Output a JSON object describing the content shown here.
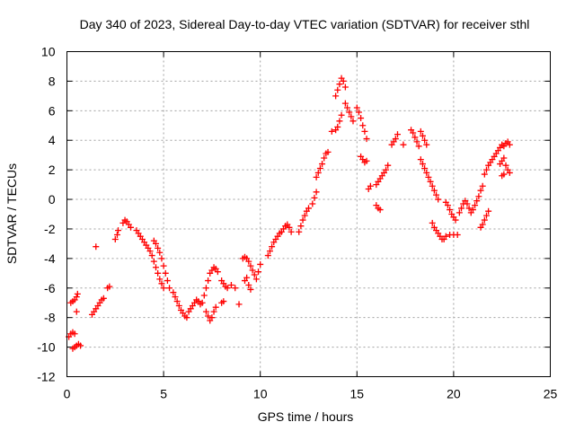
{
  "colors": {
    "series": "#ff0000",
    "grid": "#a0a0a0",
    "axis": "#000000"
  },
  "chart_data": {
    "type": "scatter",
    "title": "Day 340 of 2023, Sidereal Day-to-day VTEC variation (SDTVAR) for receiver sthl",
    "xlabel": "GPS time / hours",
    "ylabel": "SDTVAR / TECUs",
    "xlim": [
      0,
      25
    ],
    "ylim": [
      -12,
      10
    ],
    "xticks": [
      0,
      5,
      10,
      15,
      20,
      25
    ],
    "yticks": [
      -12,
      -10,
      -8,
      -6,
      -4,
      -2,
      0,
      2,
      4,
      6,
      8,
      10
    ],
    "grid": true,
    "marker": "+",
    "series": [
      {
        "name": "SDTVAR",
        "points": [
          [
            0.1,
            -9.3
          ],
          [
            0.2,
            -9.1
          ],
          [
            0.3,
            -9.0
          ],
          [
            0.4,
            -9.1
          ],
          [
            0.2,
            -7.0
          ],
          [
            0.3,
            -6.9
          ],
          [
            0.4,
            -6.8
          ],
          [
            0.5,
            -6.6
          ],
          [
            0.55,
            -6.4
          ],
          [
            0.5,
            -7.6
          ],
          [
            0.3,
            -10.1
          ],
          [
            0.4,
            -10.0
          ],
          [
            0.5,
            -9.9
          ],
          [
            0.6,
            -9.8
          ],
          [
            0.7,
            -9.9
          ],
          [
            1.3,
            -7.8
          ],
          [
            1.4,
            -7.6
          ],
          [
            1.5,
            -7.4
          ],
          [
            1.6,
            -7.2
          ],
          [
            1.7,
            -7.0
          ],
          [
            1.8,
            -6.8
          ],
          [
            1.9,
            -6.7
          ],
          [
            1.5,
            -3.2
          ],
          [
            2.1,
            -6.0
          ],
          [
            2.2,
            -5.9
          ],
          [
            2.5,
            -2.7
          ],
          [
            2.6,
            -2.4
          ],
          [
            2.65,
            -2.1
          ],
          [
            2.9,
            -1.6
          ],
          [
            3.0,
            -1.4
          ],
          [
            3.1,
            -1.5
          ],
          [
            3.2,
            -1.7
          ],
          [
            3.3,
            -1.9
          ],
          [
            3.6,
            -2.1
          ],
          [
            3.7,
            -2.3
          ],
          [
            3.8,
            -2.5
          ],
          [
            3.9,
            -2.7
          ],
          [
            4.0,
            -2.9
          ],
          [
            4.1,
            -3.1
          ],
          [
            4.2,
            -3.3
          ],
          [
            4.3,
            -3.5
          ],
          [
            4.4,
            -3.8
          ],
          [
            4.5,
            -4.2
          ],
          [
            4.6,
            -4.6
          ],
          [
            4.7,
            -5.0
          ],
          [
            4.8,
            -5.4
          ],
          [
            4.9,
            -5.7
          ],
          [
            5.0,
            -6.0
          ],
          [
            4.5,
            -2.8
          ],
          [
            4.6,
            -3.0
          ],
          [
            4.7,
            -3.3
          ],
          [
            4.8,
            -3.6
          ],
          [
            4.9,
            -4.0
          ],
          [
            5.0,
            -4.5
          ],
          [
            5.1,
            -5.0
          ],
          [
            5.2,
            -5.5
          ],
          [
            5.3,
            -6.0
          ],
          [
            5.5,
            -6.3
          ],
          [
            5.6,
            -6.6
          ],
          [
            5.7,
            -6.9
          ],
          [
            5.8,
            -7.2
          ],
          [
            5.9,
            -7.5
          ],
          [
            6.0,
            -7.7
          ],
          [
            6.1,
            -7.9
          ],
          [
            6.2,
            -8.0
          ],
          [
            6.3,
            -7.6
          ],
          [
            6.4,
            -7.4
          ],
          [
            6.5,
            -7.2
          ],
          [
            6.6,
            -7.0
          ],
          [
            6.7,
            -6.8
          ],
          [
            6.8,
            -6.9
          ],
          [
            6.9,
            -7.1
          ],
          [
            7.0,
            -7.0
          ],
          [
            7.1,
            -6.5
          ],
          [
            7.2,
            -6.0
          ],
          [
            7.3,
            -5.5
          ],
          [
            7.4,
            -5.0
          ],
          [
            7.5,
            -4.8
          ],
          [
            7.6,
            -4.6
          ],
          [
            7.7,
            -4.7
          ],
          [
            7.8,
            -4.9
          ],
          [
            7.2,
            -7.6
          ],
          [
            7.3,
            -7.9
          ],
          [
            7.4,
            -8.2
          ],
          [
            7.5,
            -8.0
          ],
          [
            7.6,
            -7.6
          ],
          [
            7.7,
            -7.3
          ],
          [
            8.0,
            -5.5
          ],
          [
            8.1,
            -5.7
          ],
          [
            8.2,
            -5.9
          ],
          [
            8.3,
            -6.0
          ],
          [
            8.0,
            -7.0
          ],
          [
            8.1,
            -6.9
          ],
          [
            8.5,
            -5.8
          ],
          [
            8.7,
            -6.0
          ],
          [
            8.9,
            -7.1
          ],
          [
            9.1,
            -4.0
          ],
          [
            9.2,
            -3.9
          ],
          [
            9.3,
            -4.0
          ],
          [
            9.4,
            -4.2
          ],
          [
            9.5,
            -4.5
          ],
          [
            9.6,
            -4.8
          ],
          [
            9.7,
            -5.1
          ],
          [
            9.8,
            -5.4
          ],
          [
            9.9,
            -4.9
          ],
          [
            10.0,
            -4.4
          ],
          [
            9.2,
            -5.5
          ],
          [
            9.3,
            -5.3
          ],
          [
            9.4,
            -5.8
          ],
          [
            9.5,
            -6.1
          ],
          [
            10.4,
            -3.8
          ],
          [
            10.5,
            -3.5
          ],
          [
            10.6,
            -3.2
          ],
          [
            10.7,
            -2.9
          ],
          [
            10.8,
            -2.7
          ],
          [
            10.9,
            -2.5
          ],
          [
            11.0,
            -2.3
          ],
          [
            11.1,
            -2.2
          ],
          [
            11.2,
            -2.0
          ],
          [
            11.3,
            -1.8
          ],
          [
            11.4,
            -1.7
          ],
          [
            11.5,
            -1.9
          ],
          [
            11.6,
            -2.2
          ],
          [
            12.0,
            -2.2
          ],
          [
            12.1,
            -1.8
          ],
          [
            12.2,
            -1.4
          ],
          [
            12.3,
            -1.1
          ],
          [
            12.4,
            -0.8
          ],
          [
            12.5,
            -0.6
          ],
          [
            12.7,
            -0.3
          ],
          [
            12.8,
            0.1
          ],
          [
            12.9,
            0.5
          ],
          [
            12.9,
            1.5
          ],
          [
            13.0,
            1.8
          ],
          [
            13.1,
            2.1
          ],
          [
            13.2,
            2.4
          ],
          [
            13.3,
            2.8
          ],
          [
            13.4,
            3.1
          ],
          [
            13.5,
            3.2
          ],
          [
            13.7,
            4.6
          ],
          [
            13.9,
            4.7
          ],
          [
            14.0,
            4.9
          ],
          [
            14.1,
            5.3
          ],
          [
            14.2,
            5.7
          ],
          [
            13.9,
            7.0
          ],
          [
            14.0,
            7.4
          ],
          [
            14.1,
            7.8
          ],
          [
            14.2,
            8.2
          ],
          [
            14.3,
            8.0
          ],
          [
            14.4,
            7.6
          ],
          [
            14.4,
            6.5
          ],
          [
            14.5,
            6.2
          ],
          [
            14.6,
            5.9
          ],
          [
            14.7,
            5.6
          ],
          [
            14.8,
            5.3
          ],
          [
            15.0,
            6.2
          ],
          [
            15.1,
            5.9
          ],
          [
            15.2,
            5.5
          ],
          [
            15.3,
            5.0
          ],
          [
            15.4,
            4.6
          ],
          [
            15.5,
            4.1
          ],
          [
            15.2,
            2.9
          ],
          [
            15.3,
            2.7
          ],
          [
            15.4,
            2.5
          ],
          [
            15.5,
            2.6
          ],
          [
            15.6,
            0.7
          ],
          [
            15.7,
            0.9
          ],
          [
            16.0,
            -0.4
          ],
          [
            16.1,
            -0.6
          ],
          [
            16.2,
            -0.7
          ],
          [
            16.0,
            1.0
          ],
          [
            16.1,
            1.2
          ],
          [
            16.2,
            1.4
          ],
          [
            16.3,
            1.6
          ],
          [
            16.4,
            1.8
          ],
          [
            16.5,
            2.0
          ],
          [
            16.6,
            2.3
          ],
          [
            16.8,
            3.7
          ],
          [
            16.9,
            3.9
          ],
          [
            17.0,
            4.1
          ],
          [
            17.1,
            4.4
          ],
          [
            17.4,
            3.7
          ],
          [
            17.8,
            4.7
          ],
          [
            17.9,
            4.5
          ],
          [
            18.0,
            4.2
          ],
          [
            18.1,
            3.9
          ],
          [
            18.2,
            3.6
          ],
          [
            18.3,
            4.6
          ],
          [
            18.4,
            4.3
          ],
          [
            18.5,
            4.0
          ],
          [
            18.6,
            3.7
          ],
          [
            18.3,
            2.7
          ],
          [
            18.4,
            2.4
          ],
          [
            18.5,
            2.1
          ],
          [
            18.6,
            1.8
          ],
          [
            18.7,
            1.5
          ],
          [
            18.8,
            1.2
          ],
          [
            18.9,
            0.9
          ],
          [
            19.0,
            0.6
          ],
          [
            19.1,
            0.3
          ],
          [
            19.2,
            0.0
          ],
          [
            18.9,
            -1.6
          ],
          [
            19.0,
            -1.9
          ],
          [
            19.1,
            -2.1
          ],
          [
            19.2,
            -2.3
          ],
          [
            19.3,
            -2.5
          ],
          [
            19.4,
            -2.7
          ],
          [
            19.5,
            -2.7
          ],
          [
            19.6,
            -2.5
          ],
          [
            19.6,
            -0.2
          ],
          [
            19.7,
            -0.4
          ],
          [
            19.8,
            -0.7
          ],
          [
            19.9,
            -1.0
          ],
          [
            20.0,
            -1.2
          ],
          [
            20.1,
            -1.4
          ],
          [
            19.8,
            -2.4
          ],
          [
            20.0,
            -2.4
          ],
          [
            20.2,
            -2.4
          ],
          [
            20.3,
            -0.9
          ],
          [
            20.4,
            -0.6
          ],
          [
            20.5,
            -0.3
          ],
          [
            20.6,
            -0.1
          ],
          [
            20.7,
            -0.3
          ],
          [
            20.8,
            -0.6
          ],
          [
            20.9,
            -0.9
          ],
          [
            21.0,
            -0.7
          ],
          [
            21.1,
            -0.4
          ],
          [
            21.2,
            -0.1
          ],
          [
            21.3,
            0.2
          ],
          [
            21.4,
            0.6
          ],
          [
            21.5,
            0.9
          ],
          [
            21.4,
            -1.9
          ],
          [
            21.5,
            -1.7
          ],
          [
            21.6,
            -1.4
          ],
          [
            21.7,
            -1.1
          ],
          [
            21.8,
            -0.8
          ],
          [
            21.6,
            1.7
          ],
          [
            21.7,
            2.0
          ],
          [
            21.8,
            2.3
          ],
          [
            21.9,
            2.5
          ],
          [
            22.0,
            2.7
          ],
          [
            22.1,
            2.9
          ],
          [
            22.2,
            3.1
          ],
          [
            22.3,
            3.3
          ],
          [
            22.4,
            3.5
          ],
          [
            22.5,
            3.7
          ],
          [
            22.6,
            3.6
          ],
          [
            22.7,
            3.8
          ],
          [
            22.8,
            3.9
          ],
          [
            22.9,
            3.7
          ],
          [
            22.4,
            2.4
          ],
          [
            22.5,
            2.6
          ],
          [
            22.6,
            2.8
          ],
          [
            22.7,
            2.3
          ],
          [
            22.8,
            2.0
          ],
          [
            22.9,
            1.8
          ],
          [
            22.5,
            1.6
          ],
          [
            22.6,
            1.7
          ]
        ]
      }
    ]
  }
}
